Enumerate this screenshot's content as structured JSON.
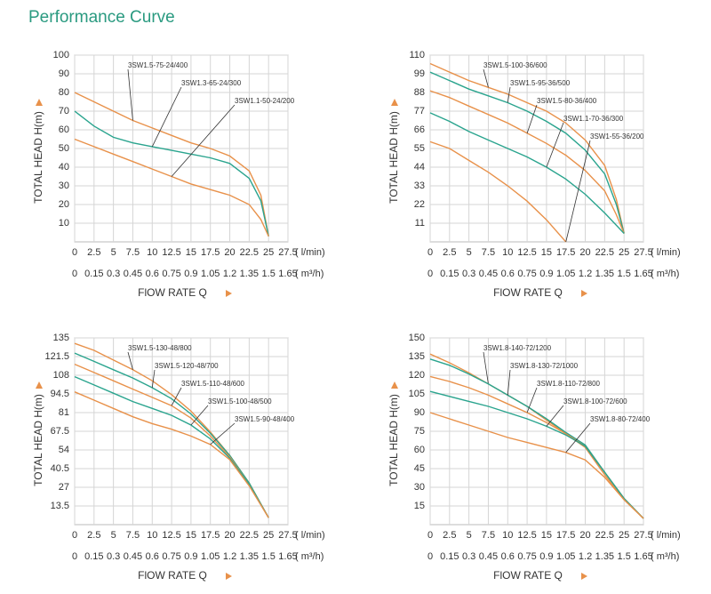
{
  "title": "Performance Curve",
  "chart_data": [
    {
      "type": "line",
      "y_label": "TOTAL HEAD H(m)",
      "x_label": "FlOW RATE Q",
      "x_unit": "( l/min)",
      "x2_unit": "( m³/h)",
      "xlim": [
        0,
        27.5
      ],
      "xticks": [
        0,
        2.5,
        5,
        7.5,
        10,
        12.5,
        15,
        17.5,
        20,
        22.5,
        25,
        27.5
      ],
      "x2lim": [
        0,
        1.65
      ],
      "x2ticks": [
        0,
        0.15,
        0.3,
        0.45,
        0.6,
        0.75,
        0.9,
        1.05,
        1.2,
        1.35,
        1.5,
        1.65
      ],
      "ylim": [
        0,
        100
      ],
      "yticks": [
        10,
        20,
        30,
        40,
        50,
        60,
        70,
        80,
        90,
        100
      ],
      "grid": true,
      "series": [
        {
          "name": "3SW1.5-75-24/400",
          "color": "#e8914a",
          "x": [
            0,
            2.5,
            5,
            7.5,
            10,
            12.5,
            15,
            17.5,
            20,
            22.5,
            24,
            25
          ],
          "values": [
            80,
            75,
            70,
            65,
            61,
            57,
            53,
            50,
            46,
            38,
            25,
            3
          ]
        },
        {
          "name": "3SW1.3-65-24/300",
          "color": "#2aa48e",
          "x": [
            0,
            2.5,
            5,
            7.5,
            10,
            12.5,
            15,
            17.5,
            20,
            22.5,
            24,
            25
          ],
          "values": [
            70,
            62,
            56,
            53,
            51,
            49,
            47,
            45,
            42,
            34,
            22,
            3
          ]
        },
        {
          "name": "3SW1.1-50-24/200",
          "color": "#e8914a",
          "x": [
            0,
            2.5,
            5,
            7.5,
            10,
            12.5,
            15,
            17.5,
            20,
            22.5,
            24,
            25
          ],
          "values": [
            55,
            51,
            47,
            43,
            39,
            35,
            31,
            28,
            25,
            20,
            12,
            3
          ]
        }
      ]
    },
    {
      "type": "line",
      "y_label": "TOTAL HEAD H(m)",
      "x_label": "FlOW RATE Q",
      "x_unit": "( l/min)",
      "x2_unit": "( m³/h)",
      "xlim": [
        0,
        27.5
      ],
      "xticks": [
        0,
        2.5,
        5,
        7.5,
        10,
        12.5,
        15,
        17.5,
        20,
        22.5,
        25,
        27.5
      ],
      "x2lim": [
        0,
        1.65
      ],
      "x2ticks": [
        0,
        0.15,
        0.3,
        0.45,
        0.6,
        0.75,
        0.9,
        1.05,
        1.2,
        1.35,
        1.5,
        1.65
      ],
      "ylim": [
        0,
        110
      ],
      "yticks": [
        11,
        22,
        33,
        44,
        55,
        66,
        77,
        88,
        99,
        110
      ],
      "grid": true,
      "series": [
        {
          "name": "3SW1.5-100-36/600",
          "color": "#e8914a",
          "x": [
            0,
            2.5,
            5,
            7.5,
            10,
            12.5,
            15,
            17.5,
            20,
            22.5,
            24,
            25
          ],
          "values": [
            105,
            100,
            95,
            91,
            87,
            82,
            77,
            70,
            60,
            45,
            25,
            5
          ]
        },
        {
          "name": "3SW1.5-95-36/500",
          "color": "#2aa48e",
          "x": [
            0,
            2.5,
            5,
            7.5,
            10,
            12.5,
            15,
            17.5,
            20,
            22.5,
            24,
            25
          ],
          "values": [
            100,
            95,
            90,
            86,
            82,
            77,
            71,
            64,
            54,
            40,
            22,
            5
          ]
        },
        {
          "name": "3SW1.5-80-36/400",
          "color": "#e8914a",
          "x": [
            0,
            2.5,
            5,
            7.5,
            10,
            12.5,
            15,
            17.5,
            20,
            22.5,
            24,
            25
          ],
          "values": [
            89,
            85,
            80,
            75,
            70,
            64,
            58,
            51,
            42,
            30,
            16,
            5
          ]
        },
        {
          "name": "3SW1.1-70-36/300",
          "color": "#2aa48e",
          "x": [
            0,
            2.5,
            5,
            7.5,
            10,
            12.5,
            15,
            17.5,
            20,
            22.5,
            25
          ],
          "values": [
            76,
            71,
            65,
            60,
            55,
            50,
            44,
            37,
            28,
            17,
            5
          ]
        },
        {
          "name": "3SW1-55-36/200",
          "color": "#e8914a",
          "x": [
            0,
            2.5,
            5,
            7.5,
            10,
            12.5,
            15,
            17.5
          ],
          "values": [
            59,
            55,
            48,
            41,
            33,
            24,
            13,
            0
          ]
        }
      ]
    },
    {
      "type": "line",
      "y_label": "TOTAL HEAD H(m)",
      "x_label": "FlOW RATE Q",
      "x_unit": "( l/min)",
      "x2_unit": "( m³/h)",
      "xlim": [
        0,
        27.5
      ],
      "xticks": [
        0,
        2.5,
        5,
        7.5,
        10,
        12.5,
        15,
        17.5,
        20,
        22.5,
        25,
        27.5
      ],
      "x2lim": [
        0,
        1.65
      ],
      "x2ticks": [
        0,
        0.15,
        0.3,
        0.45,
        0.6,
        0.75,
        0.9,
        1.05,
        1.2,
        1.35,
        1.5,
        1.65
      ],
      "ylim": [
        0,
        135
      ],
      "yticks": [
        13.5,
        27,
        40.5,
        54,
        67.5,
        81,
        94.5,
        108,
        121.5,
        135
      ],
      "grid": true,
      "series": [
        {
          "name": "3SW1.5-130-48/800",
          "color": "#e8914a",
          "x": [
            0,
            2.5,
            5,
            7.5,
            10,
            12.5,
            15,
            17.5,
            20,
            22.5,
            25
          ],
          "values": [
            131,
            126,
            119,
            112,
            104,
            94,
            82,
            67,
            50,
            30,
            5
          ]
        },
        {
          "name": "3SW1.5-120-48/700",
          "color": "#2aa48e",
          "x": [
            0,
            2.5,
            5,
            7.5,
            10,
            12.5,
            15,
            17.5,
            20,
            22.5,
            25
          ],
          "values": [
            124,
            118,
            112,
            106,
            99,
            91,
            80,
            66,
            50,
            30,
            5
          ]
        },
        {
          "name": "3SW1.5-110-48/600",
          "color": "#e8914a",
          "x": [
            0,
            2.5,
            5,
            7.5,
            10,
            12.5,
            15,
            17.5,
            20,
            22.5,
            25
          ],
          "values": [
            116,
            110,
            104,
            98,
            92,
            86,
            77,
            64,
            49,
            29,
            5
          ]
        },
        {
          "name": "3SW1.5-100-48/500",
          "color": "#2aa48e",
          "x": [
            0,
            2.5,
            5,
            7.5,
            10,
            12.5,
            15,
            17.5,
            20,
            22.5,
            25
          ],
          "values": [
            107,
            101,
            95,
            89,
            84,
            79,
            72,
            62,
            48,
            29,
            5
          ]
        },
        {
          "name": "3SW1.5-90-48/400",
          "color": "#e8914a",
          "x": [
            0,
            2.5,
            5,
            7.5,
            10,
            12.5,
            15,
            17.5,
            20,
            22.5,
            25
          ],
          "values": [
            96,
            90,
            84,
            78,
            73,
            69,
            64,
            58,
            47,
            28,
            5
          ]
        }
      ]
    },
    {
      "type": "line",
      "y_label": "TOTAL HEAD H(m)",
      "x_label": "FlOW RATE Q",
      "x_unit": "( l/min)",
      "x2_unit": "( m³/h)",
      "xlim": [
        0,
        27.5
      ],
      "xticks": [
        0,
        2.5,
        5,
        7.5,
        10,
        12.5,
        15,
        17.5,
        20,
        22.5,
        25,
        27.5
      ],
      "x2lim": [
        0,
        1.65
      ],
      "x2ticks": [
        0,
        0.15,
        0.3,
        0.45,
        0.6,
        0.75,
        0.9,
        1.05,
        1.2,
        1.35,
        1.5,
        1.65
      ],
      "ylim": [
        0,
        150
      ],
      "yticks": [
        15,
        30,
        45,
        60,
        75,
        90,
        105,
        120,
        135,
        150
      ],
      "grid": true,
      "series": [
        {
          "name": "3SW1.8-140-72/1200",
          "color": "#e8914a",
          "x": [
            0,
            2.5,
            5,
            7.5,
            10,
            12.5,
            15,
            17.5,
            20,
            22.5,
            25,
            27.5
          ],
          "values": [
            137,
            130,
            122,
            113,
            104,
            95,
            84,
            73,
            62,
            40,
            20,
            5
          ]
        },
        {
          "name": "3SW1.8-130-72/1000",
          "color": "#2aa48e",
          "x": [
            0,
            2.5,
            5,
            7.5,
            10,
            12.5,
            15,
            17.5,
            20,
            22.5,
            25,
            27.5
          ],
          "values": [
            133,
            128,
            121,
            113,
            104,
            95,
            85,
            74,
            64,
            42,
            21,
            5
          ]
        },
        {
          "name": "3SW1.8-110-72/800",
          "color": "#e8914a",
          "x": [
            0,
            2.5,
            5,
            7.5,
            10,
            12.5,
            15,
            17.5,
            20,
            22.5,
            25,
            27.5
          ],
          "values": [
            119,
            115,
            110,
            104,
            97,
            90,
            82,
            73,
            63,
            42,
            21,
            5
          ]
        },
        {
          "name": "3SW1.8-100-72/600",
          "color": "#2aa48e",
          "x": [
            0,
            2.5,
            5,
            7.5,
            10,
            12.5,
            15,
            17.5,
            20,
            22.5,
            25,
            27.5
          ],
          "values": [
            107,
            103,
            99,
            95,
            90,
            85,
            79,
            72,
            63,
            42,
            21,
            5
          ]
        },
        {
          "name": "3SW1.8-80-72/400",
          "color": "#e8914a",
          "x": [
            0,
            2.5,
            5,
            7.5,
            10,
            12.5,
            15,
            17.5,
            20,
            22.5,
            25,
            27.5
          ],
          "values": [
            90,
            85,
            80,
            75,
            70,
            66,
            62,
            58,
            52,
            38,
            20,
            5
          ]
        }
      ]
    }
  ]
}
